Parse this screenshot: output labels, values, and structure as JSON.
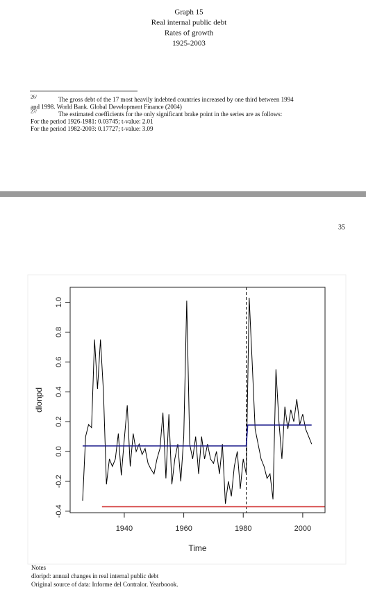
{
  "header": {
    "lines": [
      "Graph 15",
      "Real internal public debt",
      "Rates of growth",
      "1925-2003"
    ]
  },
  "footnotes": [
    {
      "mark": "26/",
      "lines": [
        "The gross debt of the 17 most heavily indebted countries increased by one third between 1994",
        "and 1998. World Bank. Global Development Finance (2004)"
      ]
    },
    {
      "mark": "27/",
      "lines": [
        "The estimated coefficients for the only significant brake point in the series are as follows:",
        "For the period 1926-1981: 0.03745; t-value: 2.01",
        "For the period 1982-2003: 0.17727; t-value: 3.09"
      ]
    }
  ],
  "page_number": "35",
  "chart_data": {
    "type": "line",
    "x_label": "Time",
    "y_label": "dlonpd",
    "xlim": [
      1921.8,
      2007.5
    ],
    "ylim": [
      -0.41,
      1.1
    ],
    "xticks": [
      1940,
      1960,
      1980,
      2000
    ],
    "yticks": [
      {
        "value": -0.4,
        "label": "-0.4"
      },
      {
        "value": -0.2,
        "label": "-0.2"
      },
      {
        "value": 0,
        "label": "0.0"
      },
      0.2,
      0.4,
      0.6,
      0.8,
      {
        "value": 1,
        "label": "1.0"
      }
    ],
    "vline": 1981,
    "series": [
      {
        "color": "#000000",
        "x": [
          1926,
          1927,
          1928,
          1929,
          1930,
          1931,
          1932,
          1933,
          1934,
          1935,
          1936,
          1937,
          1938,
          1939,
          1940,
          1941,
          1942,
          1943,
          1944,
          1945,
          1946,
          1947,
          1948,
          1949,
          1950,
          1951,
          1952,
          1953,
          1954,
          1955,
          1956,
          1957,
          1958,
          1959,
          1960,
          1961,
          1962,
          1963,
          1964,
          1965,
          1966,
          1967,
          1968,
          1969,
          1970,
          1971,
          1972,
          1973,
          1974,
          1975,
          1976,
          1977,
          1978,
          1979,
          1980,
          1981,
          1982,
          1983,
          1984,
          1985,
          1986,
          1987,
          1988,
          1989,
          1990,
          1991,
          1992,
          1993,
          1994,
          1995,
          1996,
          1997,
          1998,
          1999,
          2000,
          2001,
          2002,
          2003
        ],
        "values": [
          -0.33,
          0.1,
          0.18,
          0.16,
          0.75,
          0.42,
          0.75,
          0.4,
          -0.22,
          -0.05,
          -0.1,
          -0.05,
          0.12,
          -0.16,
          0.08,
          0.31,
          -0.1,
          0.12,
          0,
          0.05,
          -0.02,
          0.02,
          -0.08,
          -0.12,
          -0.15,
          -0.05,
          0.02,
          0.26,
          -0.18,
          0.25,
          -0.22,
          -0.05,
          0.05,
          -0.2,
          0.1,
          1.01,
          0.05,
          -0.05,
          0.1,
          -0.15,
          0.1,
          -0.05,
          0.05,
          -0.05,
          -0.08,
          0,
          -0.15,
          0.05,
          -0.35,
          -0.2,
          -0.3,
          -0.1,
          0,
          -0.25,
          -0.05,
          -0.15,
          1.03,
          0.6,
          0.15,
          0.05,
          -0.05,
          -0.1,
          -0.18,
          -0.15,
          -0.32,
          0.55,
          0.2,
          -0.05,
          0.3,
          0.15,
          0.28,
          0.2,
          0.35,
          0.18,
          0.25,
          0.15,
          0.1,
          0.05
        ]
      },
      {
        "color": "#1c1c8c",
        "x": [
          1926,
          1981,
          1981.5,
          2003
        ],
        "values": [
          0.03745,
          0.03745,
          0.17727,
          0.17727
        ]
      },
      {
        "color": "#d03030",
        "x": [
          1932.5,
          2007.5
        ],
        "values": [
          -0.37,
          -0.37
        ]
      }
    ]
  },
  "notes": {
    "lines": [
      "Notes",
      "dloripd: annual changes in real internal public debt",
      "Original source of data: Informe del Contralor. Yearboook."
    ]
  }
}
